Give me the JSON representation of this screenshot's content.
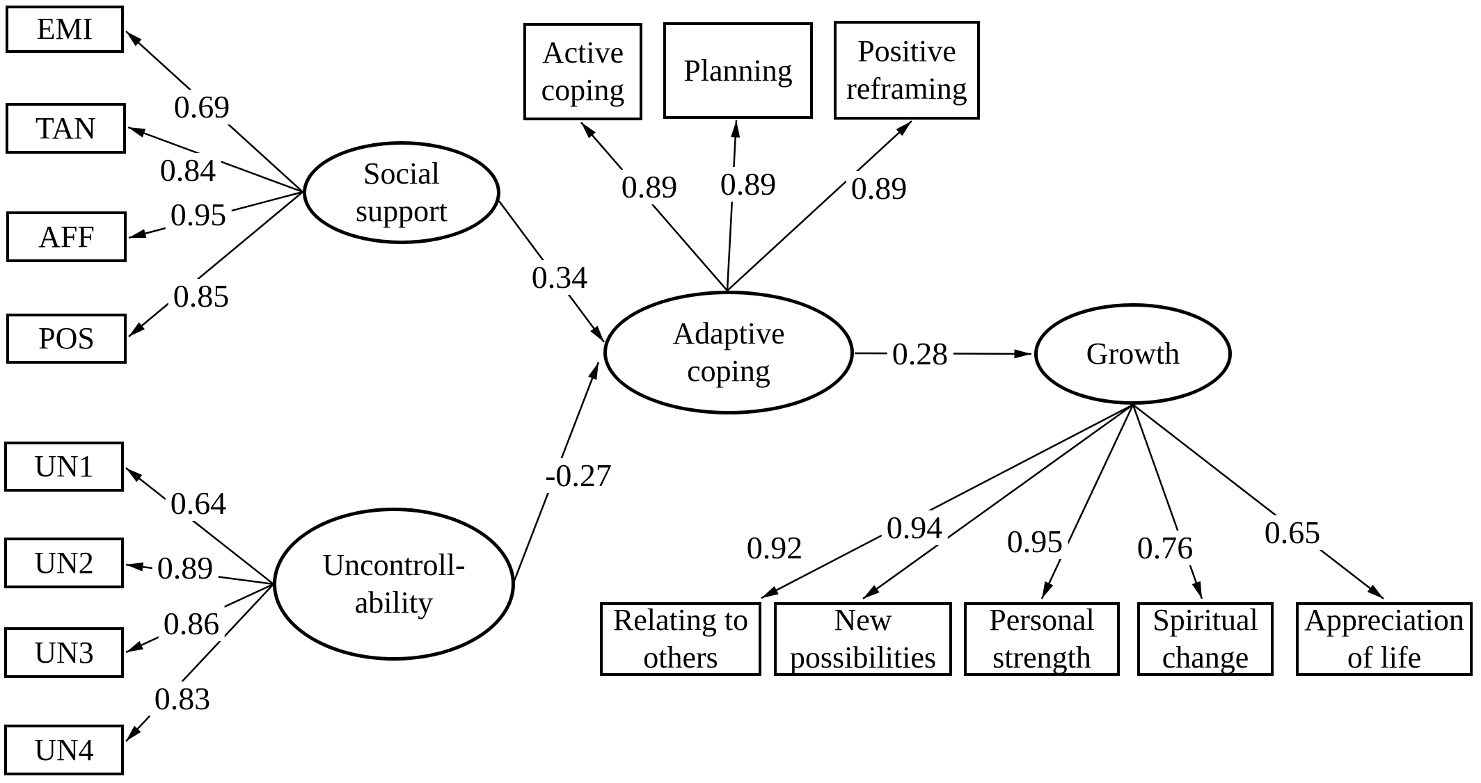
{
  "nodes": {
    "emi": {
      "label": "EMI",
      "type": "observed"
    },
    "tan": {
      "label": "TAN",
      "type": "observed"
    },
    "aff": {
      "label": "AFF",
      "type": "observed"
    },
    "pos": {
      "label": "POS",
      "type": "observed"
    },
    "un1": {
      "label": "UN1",
      "type": "observed"
    },
    "un2": {
      "label": "UN2",
      "type": "observed"
    },
    "un3": {
      "label": "UN3",
      "type": "observed"
    },
    "un4": {
      "label": "UN4",
      "type": "observed"
    },
    "social_support": {
      "label": "Social\nsupport",
      "type": "latent"
    },
    "uncontrollability": {
      "label": "Uncontroll-\nability",
      "type": "latent"
    },
    "adaptive_coping": {
      "label": "Adaptive\ncoping",
      "type": "latent"
    },
    "growth": {
      "label": "Growth",
      "type": "latent"
    },
    "active_coping": {
      "label": "Active\ncoping",
      "type": "observed"
    },
    "planning": {
      "label": "Planning",
      "type": "observed"
    },
    "positive_reframing": {
      "label": "Positive\nreframing",
      "type": "observed"
    },
    "relating_to_others": {
      "label": "Relating to\nothers",
      "type": "observed"
    },
    "new_possibilities": {
      "label": "New\npossibilities",
      "type": "observed"
    },
    "personal_strength": {
      "label": "Personal\nstrength",
      "type": "observed"
    },
    "spiritual_change": {
      "label": "Spiritual\nchange",
      "type": "observed"
    },
    "appreciation_of_life": {
      "label": "Appreciation\nof life",
      "type": "observed"
    }
  },
  "edges": [
    {
      "from": "social_support",
      "to": "emi",
      "coef": "0.69"
    },
    {
      "from": "social_support",
      "to": "tan",
      "coef": "0.84"
    },
    {
      "from": "social_support",
      "to": "aff",
      "coef": "0.95"
    },
    {
      "from": "social_support",
      "to": "pos",
      "coef": "0.85"
    },
    {
      "from": "uncontrollability",
      "to": "un1",
      "coef": "0.64"
    },
    {
      "from": "uncontrollability",
      "to": "un2",
      "coef": "0.89"
    },
    {
      "from": "uncontrollability",
      "to": "un3",
      "coef": "0.86"
    },
    {
      "from": "uncontrollability",
      "to": "un4",
      "coef": "0.83"
    },
    {
      "from": "adaptive_coping",
      "to": "active_coping",
      "coef": "0.89"
    },
    {
      "from": "adaptive_coping",
      "to": "planning",
      "coef": "0.89"
    },
    {
      "from": "adaptive_coping",
      "to": "positive_reframing",
      "coef": "0.89"
    },
    {
      "from": "social_support",
      "to": "adaptive_coping",
      "coef": "0.34"
    },
    {
      "from": "uncontrollability",
      "to": "adaptive_coping",
      "coef": "-0.27"
    },
    {
      "from": "adaptive_coping",
      "to": "growth",
      "coef": "0.28"
    },
    {
      "from": "growth",
      "to": "relating_to_others",
      "coef": "0.92"
    },
    {
      "from": "growth",
      "to": "new_possibilities",
      "coef": "0.94"
    },
    {
      "from": "growth",
      "to": "personal_strength",
      "coef": "0.95"
    },
    {
      "from": "growth",
      "to": "spiritual_change",
      "coef": "0.76"
    },
    {
      "from": "growth",
      "to": "appreciation_of_life",
      "coef": "0.65"
    }
  ],
  "colors": {
    "ink": "#000000",
    "background": "#ffffff"
  }
}
